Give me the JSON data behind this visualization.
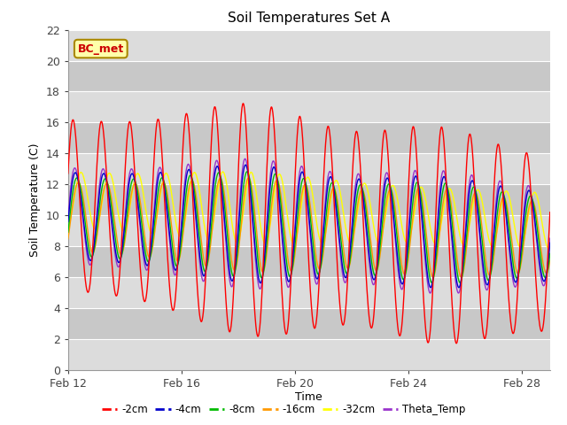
{
  "title": "Soil Temperatures Set A",
  "xlabel": "Time",
  "ylabel": "Soil Temperature (C)",
  "ylim": [
    0,
    22
  ],
  "yticks": [
    0,
    2,
    4,
    6,
    8,
    10,
    12,
    14,
    16,
    18,
    20,
    22
  ],
  "annotation": "BC_met",
  "plot_bg_light": "#dcdcdc",
  "plot_bg_dark": "#c8c8c8",
  "series_colors": {
    "-2cm": "#ff0000",
    "-4cm": "#0000cc",
    "-8cm": "#00bb00",
    "-16cm": "#ff9900",
    "-32cm": "#ffff00",
    "Theta_Temp": "#9933cc"
  },
  "x_tick_days": [
    12,
    16,
    20,
    24,
    28
  ],
  "x_tick_labels": [
    "Feb 12",
    "Feb 16",
    "Feb 20",
    "Feb 24",
    "Feb 28"
  ],
  "legend_labels": [
    "-2cm",
    "-4cm",
    "-8cm",
    "-16cm",
    "-32cm",
    "Theta_Temp"
  ]
}
